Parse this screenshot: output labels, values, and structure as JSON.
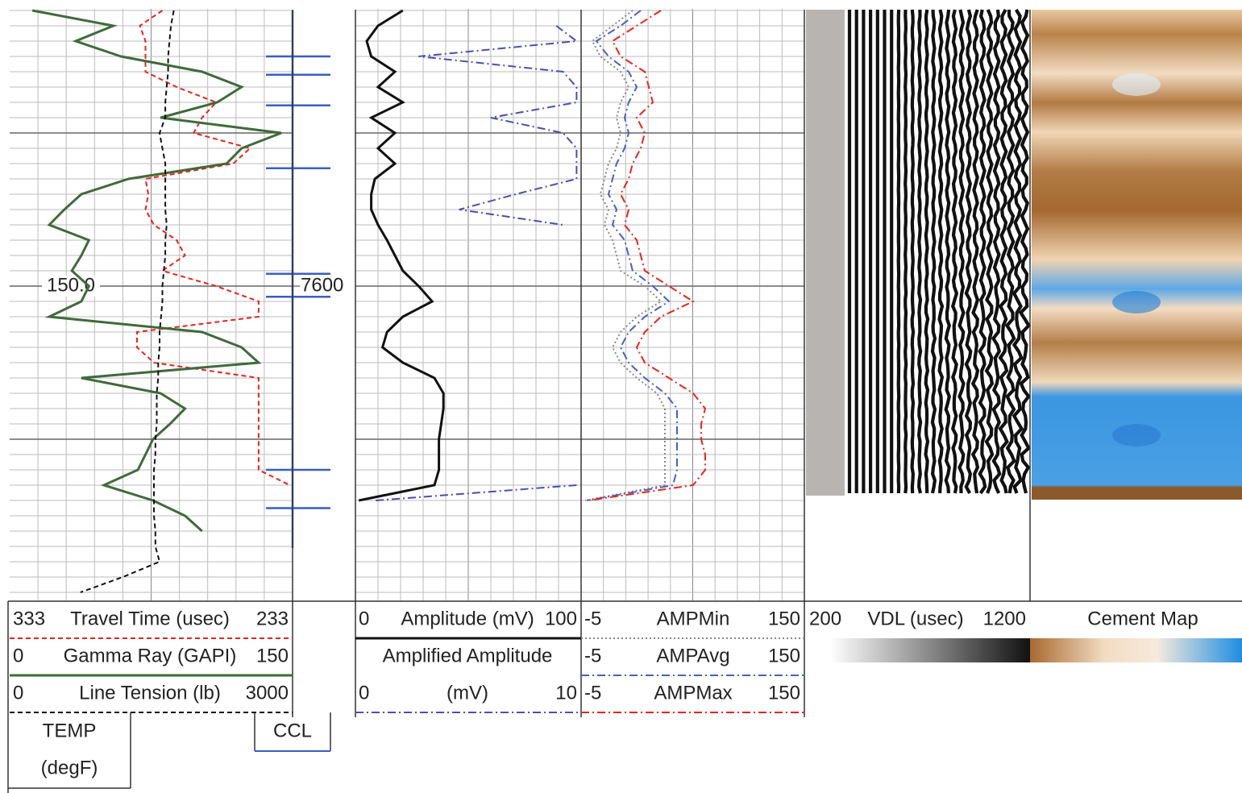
{
  "chart_data": {
    "type": "well-log",
    "ylim": [
      7420,
      7805
    ],
    "depths": [
      7420,
      7430,
      7440,
      7450,
      7460,
      7470,
      7480,
      7490,
      7500,
      7510,
      7520,
      7530,
      7540,
      7550,
      7560,
      7570,
      7580,
      7590,
      7600,
      7610,
      7620,
      7630,
      7640,
      7650,
      7660,
      7670,
      7680,
      7690,
      7700,
      7710,
      7720,
      7730,
      7740,
      7750,
      7760,
      7770,
      7780,
      7790,
      7800
    ],
    "major_depths": [
      7500,
      7600,
      7700
    ],
    "yticks": [
      7600
    ],
    "annotations": [
      {
        "text": "150.0",
        "depth": 7600
      }
    ],
    "temp_label": [
      "TEMP",
      "(degF)"
    ],
    "tracks": [
      {
        "curves": [
          {
            "name": "Travel Time (usec)",
            "xlim": [
              333,
              233
            ],
            "color": "#e8241c",
            "dash": "dashed",
            "values": [
              279,
              287,
              285,
              285,
              285,
              274,
              260,
              265,
              268,
              248,
              254,
              285,
              284,
              285,
              282,
              274,
              271,
              279,
              260,
              245,
              245,
              288,
              288,
              282,
              245,
              245,
              245,
              245,
              245,
              245,
              245,
              234,
              null,
              null,
              null,
              null,
              null,
              null,
              null
            ]
          },
          {
            "name": "Gamma Ray (GAPI)",
            "xlim": [
              0,
              150
            ],
            "color": "#3f6b3a",
            "dash": "solid",
            "values": [
              12,
              55,
              35,
              59,
              102,
              123,
              110,
              80,
              144,
              123,
              115,
              63,
              38,
              29,
              21,
              42,
              38,
              33,
              42,
              38,
              21,
              102,
              123,
              132,
              38,
              80,
              93,
              85,
              76,
              72,
              68,
              50,
              76,
              93,
              102,
              null,
              null,
              null,
              null
            ]
          },
          {
            "name": "Line Tension (lb)",
            "xlim": [
              0,
              3000
            ],
            "color": "#111111",
            "dash": "dashed",
            "values": [
              1740,
              1710,
              1695,
              1680,
              1680,
              1665,
              1650,
              1650,
              1590,
              1620,
              1650,
              1650,
              1650,
              1650,
              1665,
              1650,
              1650,
              1635,
              1620,
              1620,
              1605,
              1590,
              1590,
              1575,
              1575,
              1560,
              1560,
              1560,
              1545,
              1545,
              1530,
              1530,
              1530,
              1530,
              1545,
              1545,
              1590,
              1200,
              750
            ]
          }
        ]
      },
      {
        "ccl": {
          "name": "CCL",
          "color": "#3a5fc0",
          "depths": [
            7450,
            7462,
            7482,
            7523,
            7592,
            7607,
            7720,
            7745
          ]
        }
      },
      {
        "curves": [
          {
            "name": "Amplitude (mV)",
            "xlim": [
              0,
              100
            ],
            "color": "#111111",
            "dash": "solid",
            "values": [
              21,
              10,
              5,
              7,
              17.5,
              10,
              21,
              7,
              17.5,
              10,
              17.5,
              8.6,
              7,
              7,
              10,
              14,
              17.5,
              21,
              28,
              34,
              21,
              14,
              12,
              21,
              35,
              39,
              39,
              38,
              37,
              37,
              37,
              35,
              1.5,
              null,
              null,
              null,
              null,
              null,
              null
            ]
          },
          {
            "name": "Amplified Amplitude",
            "unit": "(mV)",
            "xlim": [
              0,
              10
            ],
            "color": "#4a4fb0",
            "dash": "dash-dot",
            "values": [
              null,
              8.9,
              9.8,
              2.8,
              9.2,
              9.8,
              9.8,
              6.0,
              9.2,
              9.8,
              9.8,
              9.8,
              7.1,
              4.6,
              9.2,
              null,
              null,
              null,
              null,
              null,
              null,
              null,
              null,
              null,
              null,
              null,
              null,
              null,
              null,
              null,
              null,
              9.8,
              0.9,
              null,
              null,
              null,
              null,
              null,
              null
            ]
          }
        ]
      },
      {
        "curves": [
          {
            "name": "AMPMin",
            "xlim": [
              -5,
              150
            ],
            "color": "#888888",
            "dash": "dotted",
            "values": [
              30.8,
              16.8,
              2.8,
              8.4,
              22.4,
              28,
              22.4,
              19.6,
              22.4,
              19.6,
              14,
              11.2,
              8.4,
              14,
              11.2,
              16.8,
              19.6,
              22.4,
              39.2,
              50.4,
              33.6,
              22.4,
              16.8,
              22.4,
              33.6,
              47.6,
              53.2,
              53.2,
              53.2,
              53.2,
              53.2,
              53.2,
              -2.2,
              null,
              null,
              null,
              null,
              null,
              null
            ]
          },
          {
            "name": "AMPAvg",
            "xlim": [
              -5,
              150
            ],
            "color": "#4a5fc0",
            "dash": "dash-dot",
            "values": [
              36.4,
              22.4,
              5.6,
              14,
              28,
              33.6,
              28,
              25.2,
              28,
              25.2,
              19.6,
              16.8,
              14,
              19.6,
              16.8,
              25.2,
              28,
              30.8,
              44.8,
              56,
              39.2,
              28,
              22.4,
              28,
              39.2,
              53.2,
              61.6,
              61.6,
              61.6,
              61.6,
              61.6,
              58.8,
              -1.1,
              null,
              null,
              null,
              null,
              null,
              null
            ]
          },
          {
            "name": "AMPMax",
            "xlim": [
              -5,
              150
            ],
            "color": "#e8241c",
            "dash": "dash-dot",
            "values": [
              50.4,
              33.6,
              16.8,
              22.4,
              39.2,
              42,
              44.8,
              33.6,
              39.2,
              36.4,
              30.8,
              28,
              22.4,
              28,
              25.2,
              33.6,
              36.4,
              39.2,
              56,
              72.8,
              50.4,
              39.2,
              33.6,
              39.2,
              56,
              72.8,
              81.2,
              78.4,
              78.4,
              81.2,
              81.2,
              72.8,
              0,
              null,
              null,
              null,
              null,
              null,
              null
            ]
          }
        ]
      },
      {
        "image": {
          "name": "VDL (usec)",
          "xlim": [
            200,
            1200
          ]
        }
      },
      {
        "image": {
          "name": "Cement Map"
        }
      }
    ]
  }
}
